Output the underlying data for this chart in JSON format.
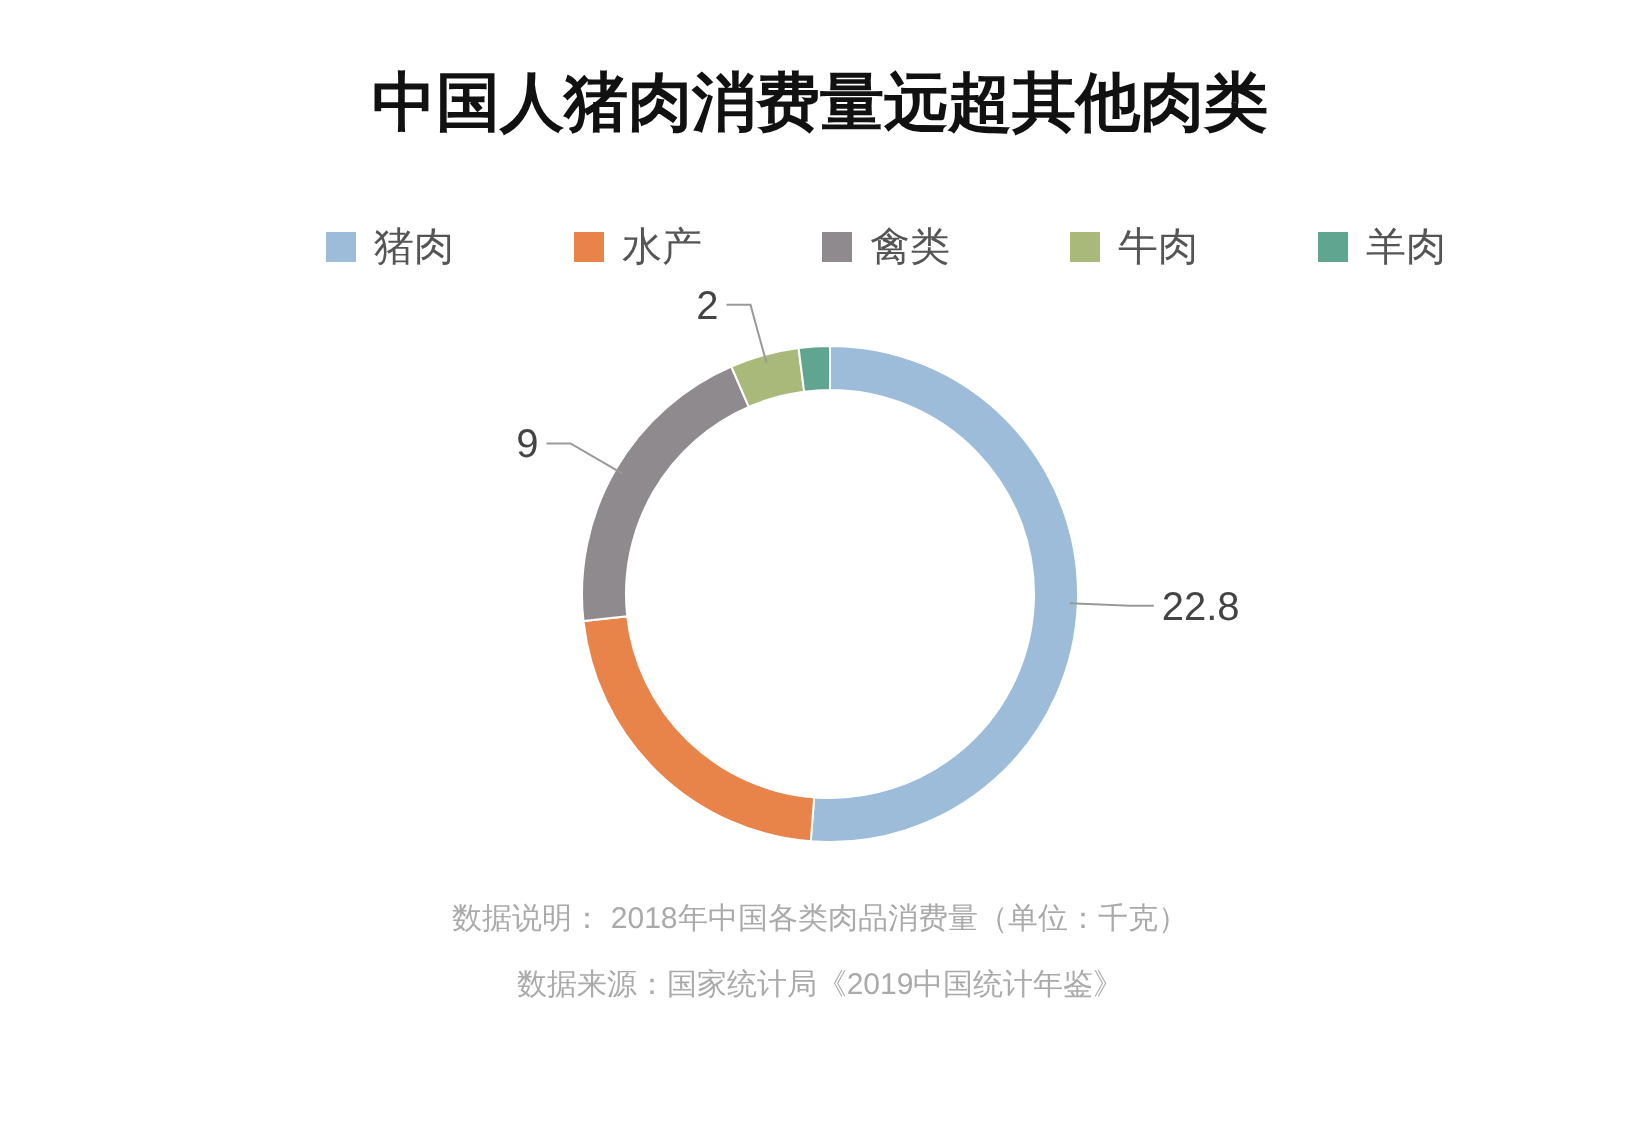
{
  "chart_data": {
    "type": "donut",
    "title": "中国人猪肉消费量远超其他肉类",
    "categories": [
      "猪肉",
      "水产",
      "禽类",
      "牛肉",
      "羊肉"
    ],
    "values": [
      22.8,
      9.8,
      9,
      2,
      0.9
    ],
    "colors": [
      "#9dbcd9",
      "#e8834a",
      "#8f8a8d",
      "#a9b97a",
      "#5fa58f"
    ],
    "value_labels": [
      "22.8",
      null,
      "9",
      "2",
      null
    ],
    "legend": "top",
    "annotations": [
      "数据说明： 2018年中国各类肉品消费量（单位：千克）",
      "数据来源：国家统计局《2019中国统计年鉴》"
    ]
  }
}
